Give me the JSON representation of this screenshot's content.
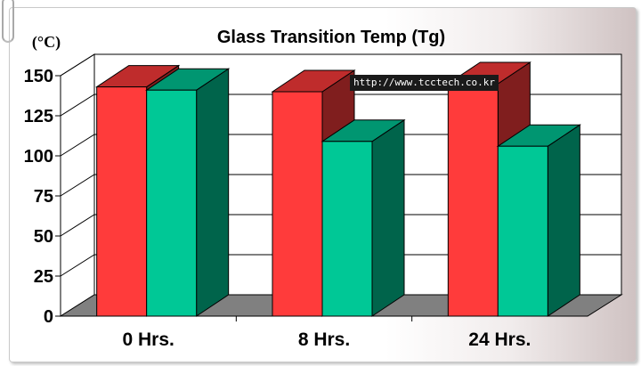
{
  "chart_data": {
    "type": "bar",
    "title": "Glass Transition Temp (Tg)",
    "ylabel": "(°C)",
    "categories": [
      "0 Hrs.",
      "8 Hrs.",
      "24 Hrs."
    ],
    "yticks": [
      "0",
      "25",
      "50",
      "75",
      "100",
      "125",
      "150"
    ],
    "ylim": [
      0,
      150
    ],
    "grid": true,
    "series": [
      {
        "color": "#ff3b3b",
        "values": [
          143,
          140,
          145
        ]
      },
      {
        "color": "#00c896",
        "values": [
          141,
          109,
          106
        ]
      }
    ]
  },
  "watermark": "http://www.tcctech.co.kr"
}
